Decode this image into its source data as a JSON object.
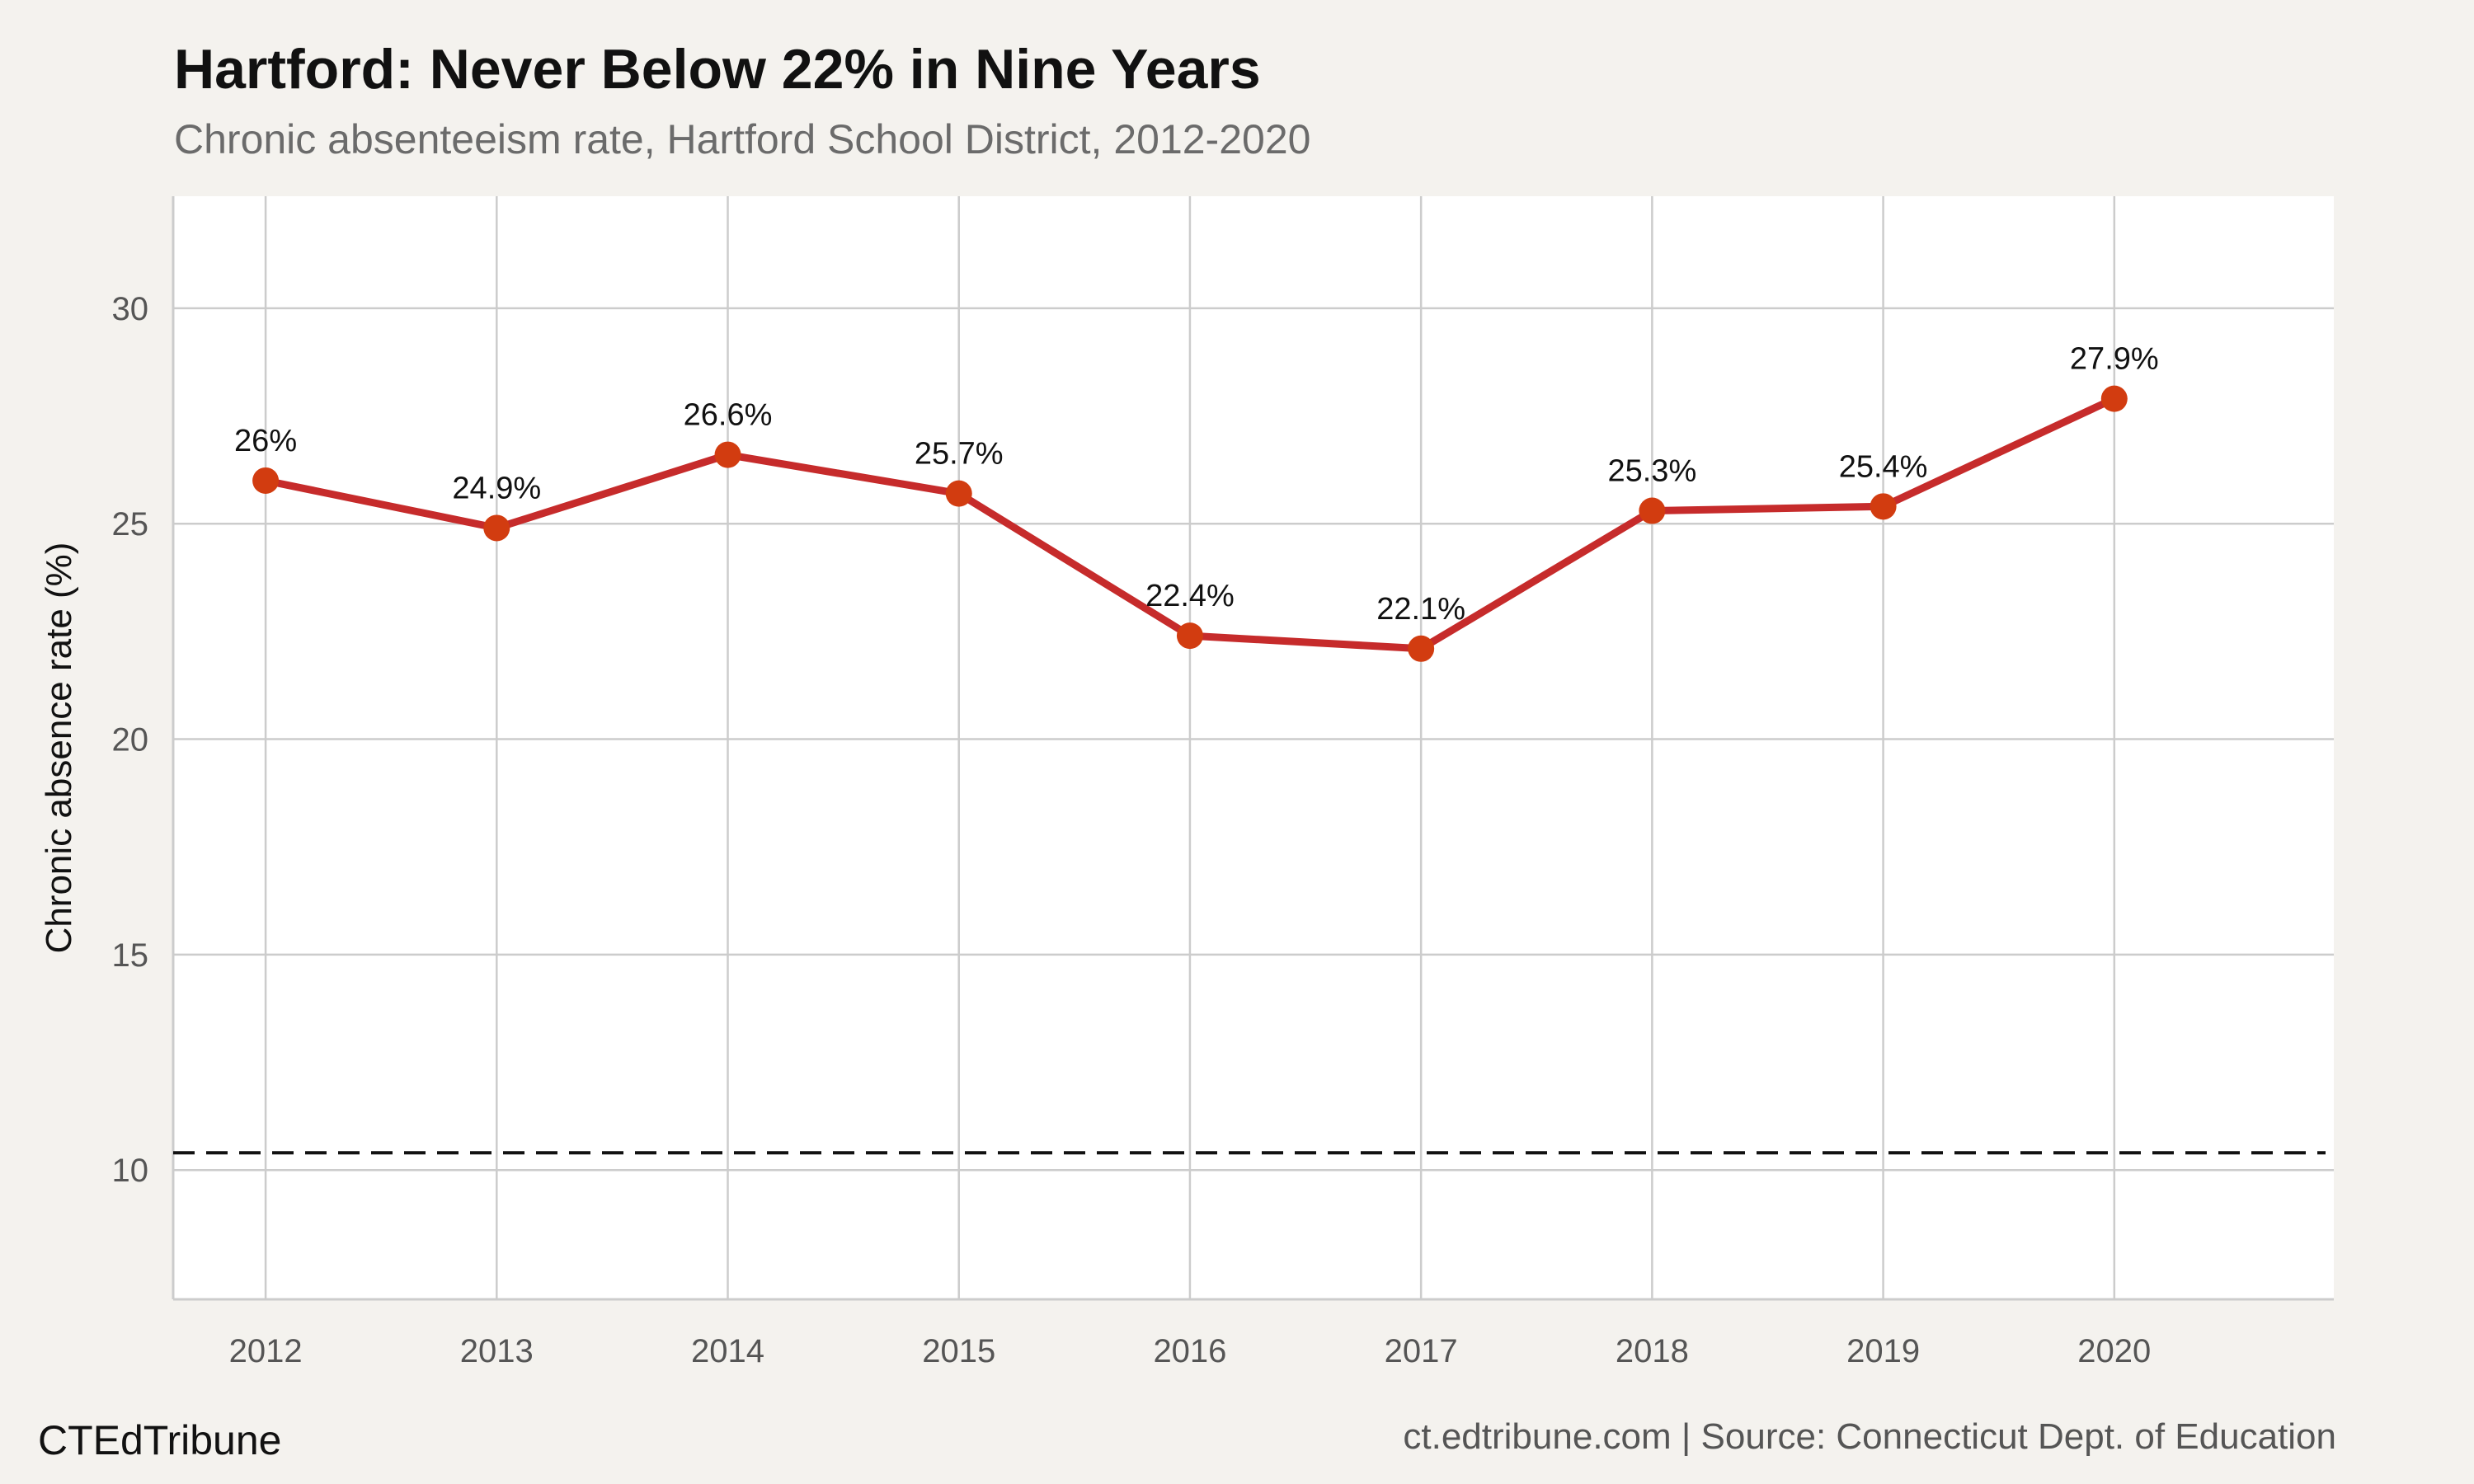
{
  "title": "Hartford: Never Below 22% in Nine Years",
  "subtitle": "Chronic absenteeism rate, Hartford School District, 2012-2020",
  "footer": {
    "brand": "CTEdTribune",
    "source": "ct.edtribune.com | Source: Connecticut Dept. of Education"
  },
  "colors": {
    "background": "#f4f2ee",
    "panel": "#ffffff",
    "grid": "#cccccc",
    "line": "#c62b2b",
    "point": "#d23c10",
    "reference": "#111111"
  },
  "chart_data": {
    "type": "line",
    "x": [
      2012,
      2013,
      2014,
      2015,
      2016,
      2017,
      2018,
      2019,
      2020
    ],
    "series": [
      {
        "values": [
          26.0,
          24.9,
          26.6,
          25.7,
          22.4,
          22.1,
          25.3,
          25.4,
          27.9
        ],
        "labels": [
          "26%",
          "24.9%",
          "26.6%",
          "25.7%",
          "22.4%",
          "22.1%",
          "25.3%",
          "25.4%",
          "27.9%"
        ]
      }
    ],
    "reference_line": {
      "value": 10.4,
      "style": "dashed"
    },
    "xlabel": "",
    "ylabel": "Chronic absence rate (%)",
    "xticks": [
      "2012",
      "2013",
      "2014",
      "2015",
      "2016",
      "2017",
      "2018",
      "2019",
      "2020"
    ],
    "yticks": [
      "10",
      "15",
      "20",
      "25",
      "30"
    ],
    "xlim": [
      2011.6,
      2020.95
    ],
    "ylim": [
      7,
      32.6
    ],
    "grid": true,
    "legend": "none"
  }
}
